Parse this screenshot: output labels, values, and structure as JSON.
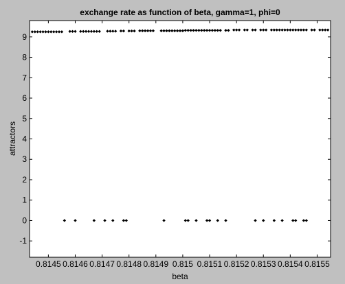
{
  "chart_data": {
    "type": "scatter",
    "title": "exchange rate as function of beta, gamma=1, phi=0",
    "xlabel": "beta",
    "ylabel": "attractors",
    "xlim": [
      0.81443,
      0.81555
    ],
    "ylim": [
      -1.8,
      9.8
    ],
    "xticks": [
      0.8145,
      0.8146,
      0.8147,
      0.8148,
      0.8149,
      0.815,
      0.8151,
      0.8152,
      0.8153,
      0.8154,
      0.8155
    ],
    "xtick_labels": [
      "0.8145",
      "0.8146",
      "0.8147",
      "0.8148",
      "0.8149",
      "0.815",
      "0.8151",
      "0.8152",
      "0.8153",
      "0.8154",
      "0.8155"
    ],
    "yticks": [
      -1,
      0,
      1,
      2,
      3,
      4,
      5,
      6,
      7,
      8,
      9
    ],
    "ytick_labels": [
      "-1",
      "0",
      "1",
      "2",
      "3",
      "4",
      "5",
      "6",
      "7",
      "8",
      "9"
    ],
    "grid": false,
    "legend": "none",
    "background_color": "#c0c0c0",
    "plot_area_color": "#ffffff",
    "marker_color": "#000000",
    "series": [
      {
        "upper_branch": {
          "x": [
            0.81444,
            0.81445,
            0.81446,
            0.81447,
            0.81448,
            0.81449,
            0.8145,
            0.81451,
            0.81452,
            0.81453,
            0.81454,
            0.81455,
            0.81458,
            0.81459,
            0.8146,
            0.81462,
            0.81463,
            0.81464,
            0.81465,
            0.81466,
            0.81467,
            0.81468,
            0.81469,
            0.81472,
            0.81473,
            0.81474,
            0.81475,
            0.81477,
            0.81478,
            0.8148,
            0.81481,
            0.81482,
            0.81484,
            0.81485,
            0.81486,
            0.81487,
            0.81488,
            0.81489,
            0.81492,
            0.81493,
            0.81494,
            0.81495,
            0.81496,
            0.81497,
            0.81498,
            0.81499,
            0.815,
            0.81501,
            0.81502,
            0.81503,
            0.81504,
            0.81505,
            0.81506,
            0.81507,
            0.81508,
            0.81509,
            0.8151,
            0.81511,
            0.81512,
            0.81513,
            0.81514,
            0.81516,
            0.81517,
            0.81519,
            0.8152,
            0.81521,
            0.81523,
            0.81524,
            0.81526,
            0.81527,
            0.81529,
            0.8153,
            0.81531,
            0.81533,
            0.81534,
            0.81535,
            0.81536,
            0.81537,
            0.81538,
            0.81539,
            0.8154,
            0.81541,
            0.81542,
            0.81543,
            0.81544,
            0.81545,
            0.81546,
            0.81548,
            0.81549,
            0.81551,
            0.81552,
            0.81553,
            0.81554
          ],
          "y": [
            9.25,
            9.25,
            9.25,
            9.25,
            9.25,
            9.25,
            9.25,
            9.25,
            9.25,
            9.25,
            9.25,
            9.25,
            9.27,
            9.27,
            9.27,
            9.27,
            9.27,
            9.27,
            9.27,
            9.27,
            9.27,
            9.27,
            9.27,
            9.28,
            9.28,
            9.28,
            9.28,
            9.29,
            9.29,
            9.29,
            9.29,
            9.29,
            9.3,
            9.3,
            9.3,
            9.3,
            9.3,
            9.3,
            9.3,
            9.3,
            9.3,
            9.3,
            9.3,
            9.3,
            9.3,
            9.3,
            9.3,
            9.32,
            9.32,
            9.32,
            9.32,
            9.32,
            9.32,
            9.32,
            9.32,
            9.32,
            9.32,
            9.32,
            9.32,
            9.32,
            9.32,
            9.32,
            9.32,
            9.34,
            9.34,
            9.34,
            9.34,
            9.34,
            9.34,
            9.34,
            9.34,
            9.34,
            9.34,
            9.34,
            9.34,
            9.34,
            9.34,
            9.34,
            9.34,
            9.34,
            9.34,
            9.34,
            9.34,
            9.34,
            9.34,
            9.34,
            9.34,
            9.34,
            9.34,
            9.34,
            9.34,
            9.34,
            9.34
          ]
        },
        "zero_branch": {
          "x": [
            0.81456,
            0.8146,
            0.81467,
            0.81471,
            0.81474,
            0.81478,
            0.81479,
            0.81493,
            0.81501,
            0.81502,
            0.81505,
            0.81509,
            0.8151,
            0.81513,
            0.81516,
            0.81527,
            0.8153,
            0.81534,
            0.81537,
            0.81541,
            0.81542,
            0.81545,
            0.81546
          ],
          "y": [
            0,
            0,
            0,
            0,
            0,
            0,
            0,
            0,
            0,
            0,
            0,
            0,
            0,
            0,
            0,
            0,
            0,
            0,
            0,
            0,
            0,
            0,
            0
          ]
        }
      }
    ]
  }
}
